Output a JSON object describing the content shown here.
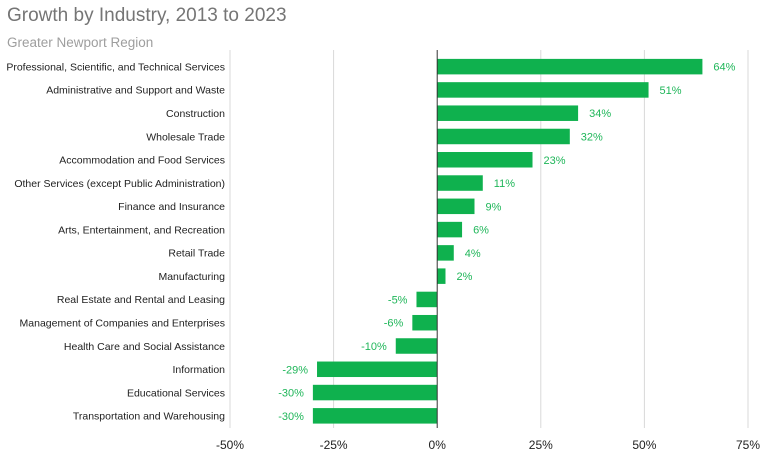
{
  "title": "Growth by Industry, 2013 to 2023",
  "subtitle": "Greater Newport Region",
  "colors": {
    "bar": "#0fb14e",
    "label": "#1fb659",
    "grid": "#d9d9d9",
    "zero": "#333333"
  },
  "chart_data": {
    "type": "bar",
    "orientation": "horizontal",
    "title": "Growth by Industry, 2013 to 2023",
    "subtitle": "Greater Newport Region",
    "categories": [
      "Professional, Scientific, and Technical Services",
      "Administrative and Support and Waste",
      "Construction",
      "Wholesale Trade",
      "Accommodation and Food Services",
      "Other Services (except Public Administration)",
      "Finance and Insurance",
      "Arts, Entertainment, and Recreation",
      "Retail Trade",
      "Manufacturing",
      "Real Estate and Rental and Leasing",
      "Management of Companies and Enterprises",
      "Health Care and Social Assistance",
      "Information",
      "Educational Services",
      "Transportation and Warehousing"
    ],
    "values": [
      0.64,
      0.51,
      0.34,
      0.32,
      0.23,
      0.11,
      0.09,
      0.06,
      0.04,
      0.02,
      -0.05,
      -0.06,
      -0.1,
      -0.29,
      -0.3,
      -0.3
    ],
    "data_labels": [
      "64%",
      "51%",
      "34%",
      "32%",
      "23%",
      "11%",
      "9%",
      "6%",
      "4%",
      "2%",
      "-5%",
      "-6%",
      "-10%",
      "-29%",
      "-30%",
      "-30%"
    ],
    "xlim": [
      -0.5,
      0.75
    ],
    "xticks": [
      -0.5,
      -0.25,
      0,
      0.25,
      0.5,
      0.75
    ],
    "xtick_labels": [
      "-50%",
      "-25%",
      "0%",
      "25%",
      "50%",
      "75%"
    ],
    "xlabel": "",
    "ylabel": "",
    "grid": true,
    "legend": "none"
  }
}
